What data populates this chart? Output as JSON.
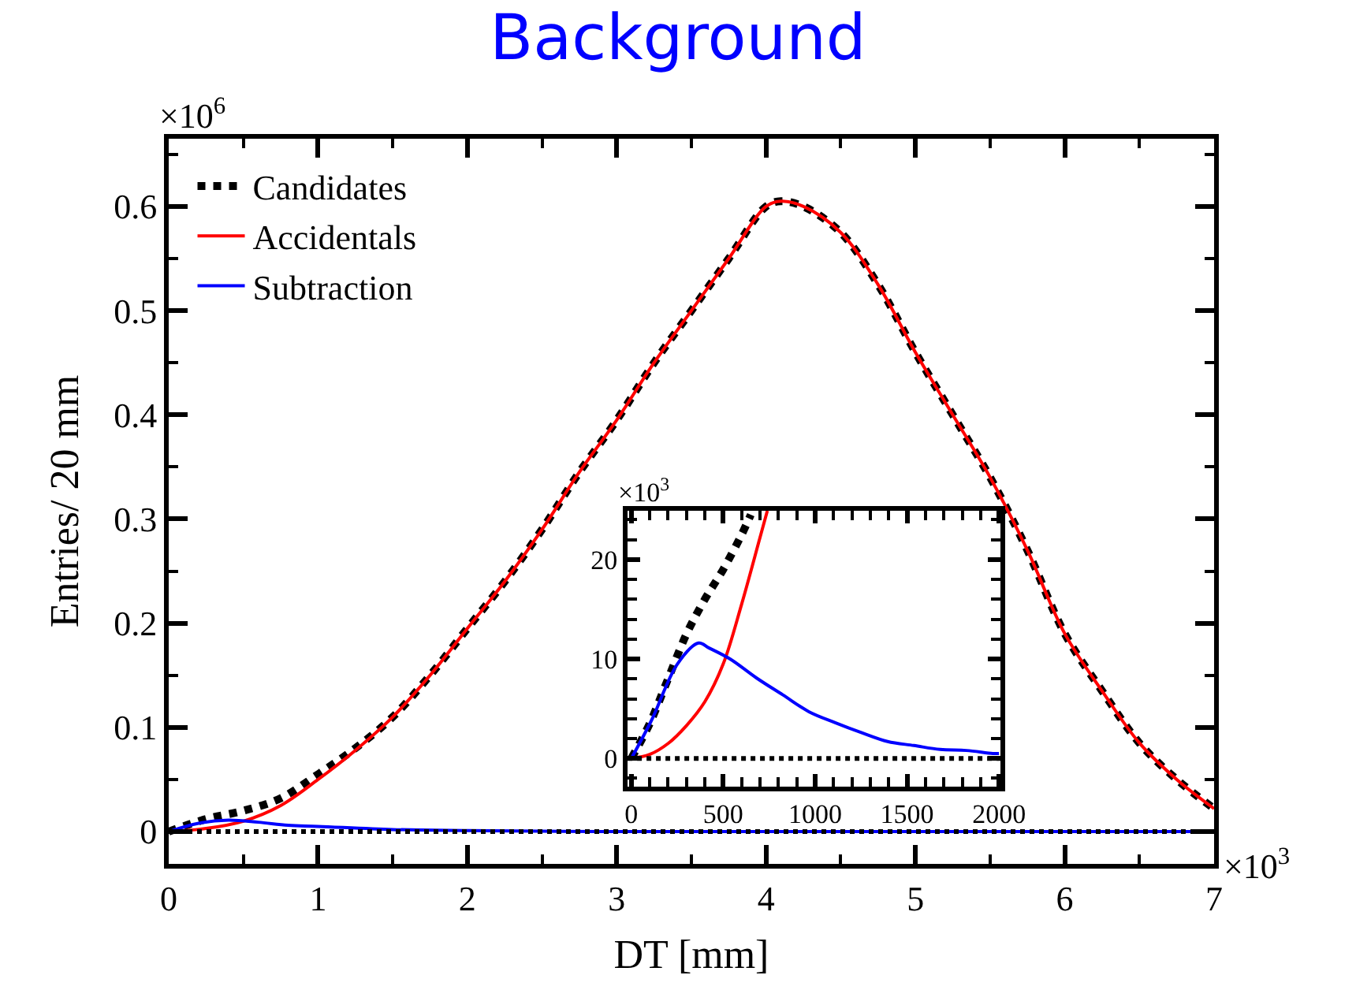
{
  "chart_data": [
    {
      "type": "line",
      "title": "Background",
      "xlabel": "DT [mm]",
      "ylabel": "Entries/ 20 mm",
      "xlim": [
        0,
        7
      ],
      "xticks": [
        0,
        1,
        2,
        3,
        4,
        5,
        6,
        7
      ],
      "ylim": [
        -0.031,
        0.665
      ],
      "yticks": [
        0,
        0.1,
        0.2,
        0.3,
        0.4,
        0.5,
        0.6
      ],
      "grid": false,
      "legend": "top left",
      "annotations": [
        "×10$^{6}$",
        "×10$^{3}$"
      ],
      "ref_lines": [
        {
          "axis": "y",
          "value": 0,
          "color": "#000000",
          "line_style": "dotted"
        }
      ],
      "series": [
        {
          "name": "Candidates",
          "color": "#000000",
          "line_style": "dotted",
          "x": [
            0,
            0.25,
            0.5,
            0.75,
            1,
            1.25,
            1.5,
            1.75,
            2,
            2.25,
            2.5,
            2.75,
            3,
            3.25,
            3.5,
            3.75,
            4,
            4.1,
            4.25,
            4.5,
            4.75,
            5,
            5.25,
            5.5,
            5.75,
            6,
            6.25,
            6.5,
            6.75,
            7
          ],
          "values": [
            0,
            0.012,
            0.02,
            0.032,
            0.055,
            0.08,
            0.11,
            0.15,
            0.195,
            0.24,
            0.29,
            0.345,
            0.395,
            0.45,
            0.5,
            0.55,
            0.6,
            0.605,
            0.6,
            0.575,
            0.525,
            0.46,
            0.4,
            0.34,
            0.27,
            0.19,
            0.135,
            0.085,
            0.05,
            0.022
          ]
        },
        {
          "name": "Accidentals",
          "color": "#ff0000",
          "line_style": "solid",
          "x": [
            0,
            0.25,
            0.5,
            0.75,
            1,
            1.25,
            1.5,
            1.75,
            2,
            2.25,
            2.5,
            2.75,
            3,
            3.25,
            3.5,
            3.75,
            4,
            4.1,
            4.25,
            4.5,
            4.75,
            5,
            5.25,
            5.5,
            5.75,
            6,
            6.25,
            6.5,
            6.75,
            7
          ],
          "values": [
            0,
            0.003,
            0.01,
            0.025,
            0.05,
            0.078,
            0.11,
            0.15,
            0.195,
            0.24,
            0.29,
            0.345,
            0.395,
            0.45,
            0.5,
            0.55,
            0.6,
            0.605,
            0.6,
            0.575,
            0.525,
            0.46,
            0.4,
            0.34,
            0.27,
            0.19,
            0.135,
            0.085,
            0.05,
            0.022
          ]
        },
        {
          "name": "Subtraction",
          "color": "#0000ff",
          "line_style": "solid",
          "x": [
            0,
            0.2,
            0.4,
            0.6,
            0.8,
            1,
            1.5,
            2,
            3,
            4,
            5,
            6,
            7
          ],
          "values": [
            0,
            0.008,
            0.011,
            0.009,
            0.006,
            0.005,
            0.002,
            0.001,
            0,
            0,
            0,
            0,
            0
          ]
        }
      ]
    },
    {
      "type": "line",
      "xlim": [
        -20,
        2010
      ],
      "xticks": [
        0,
        500,
        1000,
        1500,
        2000
      ],
      "ylim": [
        -2.8,
        24.9
      ],
      "yticks": [
        0,
        10,
        20
      ],
      "grid": false,
      "annotations": [
        "×10$^{3}$"
      ],
      "ref_lines": [
        {
          "axis": "y",
          "value": 0,
          "color": "#000000",
          "line_style": "dotted"
        }
      ],
      "series": [
        {
          "color": "#000000",
          "line_style": "dotted",
          "x": [
            0,
            100,
            200,
            300,
            400,
            500,
            600,
            650
          ],
          "values": [
            0,
            3.5,
            8,
            12.5,
            16,
            19,
            22.5,
            24.5
          ]
        },
        {
          "color": "#ff0000",
          "line_style": "solid",
          "x": [
            0,
            100,
            200,
            300,
            400,
            500,
            600,
            700,
            740
          ],
          "values": [
            0,
            0.4,
            1.5,
            3.3,
            5.7,
            9.5,
            15.5,
            22.2,
            24.9
          ]
        },
        {
          "color": "#0000ff",
          "line_style": "solid",
          "x": [
            0,
            109,
            251,
            366,
            423,
            537,
            680,
            823,
            966,
            1109,
            1251,
            1394,
            1537,
            1680,
            1823,
            1966,
            2000
          ],
          "values": [
            0,
            3.8,
            9.5,
            11.6,
            11.1,
            10,
            8.1,
            6.4,
            4.7,
            3.6,
            2.6,
            1.7,
            1.3,
            0.9,
            0.8,
            0.5,
            0.5
          ]
        }
      ]
    }
  ]
}
